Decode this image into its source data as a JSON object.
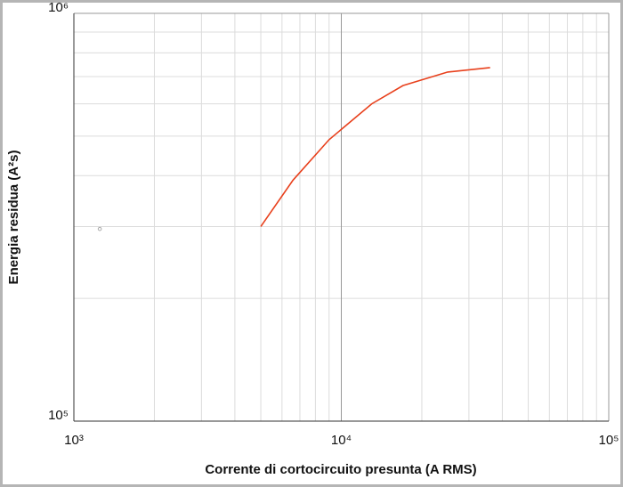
{
  "chart_data": {
    "type": "line",
    "xlabel": "Corrente di cortocircuito presunta (A RMS)",
    "ylabel": "Energia residua (A²s)",
    "xscale": "log",
    "yscale": "log",
    "xlim": [
      1000,
      100000
    ],
    "ylim": [
      100000,
      1000000
    ],
    "xticks": [
      {
        "value": 1000,
        "label": "10³"
      },
      {
        "value": 10000,
        "label": "10⁴"
      },
      {
        "value": 100000,
        "label": "10⁵"
      }
    ],
    "yticks": [
      {
        "value": 100000,
        "label": "10⁵"
      },
      {
        "value": 1000000,
        "label": "10⁶"
      }
    ],
    "xgrid_minor": [
      2000,
      3000,
      4000,
      5000,
      6000,
      7000,
      8000,
      9000,
      20000,
      30000,
      40000,
      50000,
      60000,
      70000,
      80000,
      90000
    ],
    "ygrid_minor": [
      200000,
      300000,
      400000,
      500000,
      600000,
      700000,
      800000,
      900000
    ],
    "grid": true,
    "series": [
      {
        "color": "#e8401c",
        "x": [
          5000,
          6600,
          9000,
          13000,
          17000,
          25000,
          36000
        ],
        "values": [
          300000,
          390000,
          490000,
          600000,
          665000,
          718000,
          736000
        ]
      },
      {
        "color": "#aaaaaa",
        "marker": "circle",
        "x": [
          1250
        ],
        "values": [
          296000
        ]
      }
    ]
  }
}
